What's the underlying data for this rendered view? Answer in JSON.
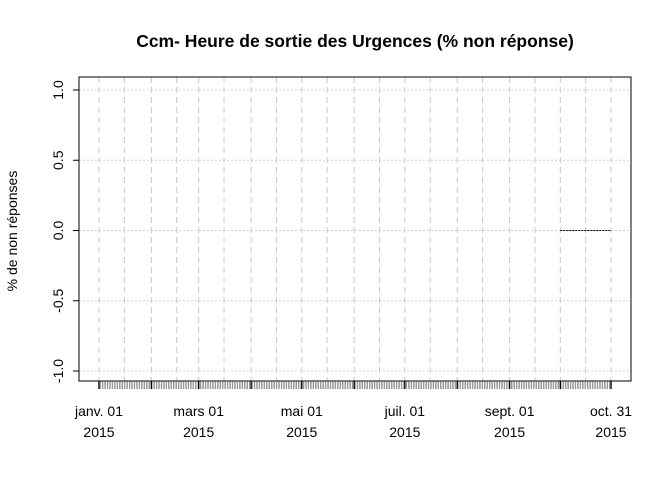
{
  "chart_data": {
    "type": "line",
    "title": "Ccm- Heure de sortie des Urgences (% non réponse)",
    "xlabel": "",
    "ylabel": "% de non réponses",
    "ylim": [
      -1,
      1
    ],
    "xlim": [
      "2015-01-01",
      "2015-10-31"
    ],
    "grid": true,
    "y_ticks": [
      {
        "value": -1.0,
        "label": "-1.0"
      },
      {
        "value": -0.5,
        "label": "-0.5"
      },
      {
        "value": 0.0,
        "label": "0.0"
      },
      {
        "value": 0.5,
        "label": "0.5"
      },
      {
        "value": 1.0,
        "label": "1.0"
      }
    ],
    "x_ticks": [
      {
        "date": "2015-01-01",
        "label1": "janv. 01",
        "label2": "2015"
      },
      {
        "date": "2015-03-01",
        "label1": "mars 01",
        "label2": "2015"
      },
      {
        "date": "2015-05-01",
        "label1": "mai 01",
        "label2": "2015"
      },
      {
        "date": "2015-07-01",
        "label1": "juil. 01",
        "label2": "2015"
      },
      {
        "date": "2015-09-01",
        "label1": "sept. 01",
        "label2": "2015"
      },
      {
        "date": "2015-10-31",
        "label1": "oct. 31",
        "label2": "2015"
      }
    ],
    "series": [
      {
        "x": [
          "2015-10-01",
          "2015-10-31"
        ],
        "values": [
          0,
          0
        ],
        "style": "dashed",
        "color": "#000000"
      }
    ]
  }
}
